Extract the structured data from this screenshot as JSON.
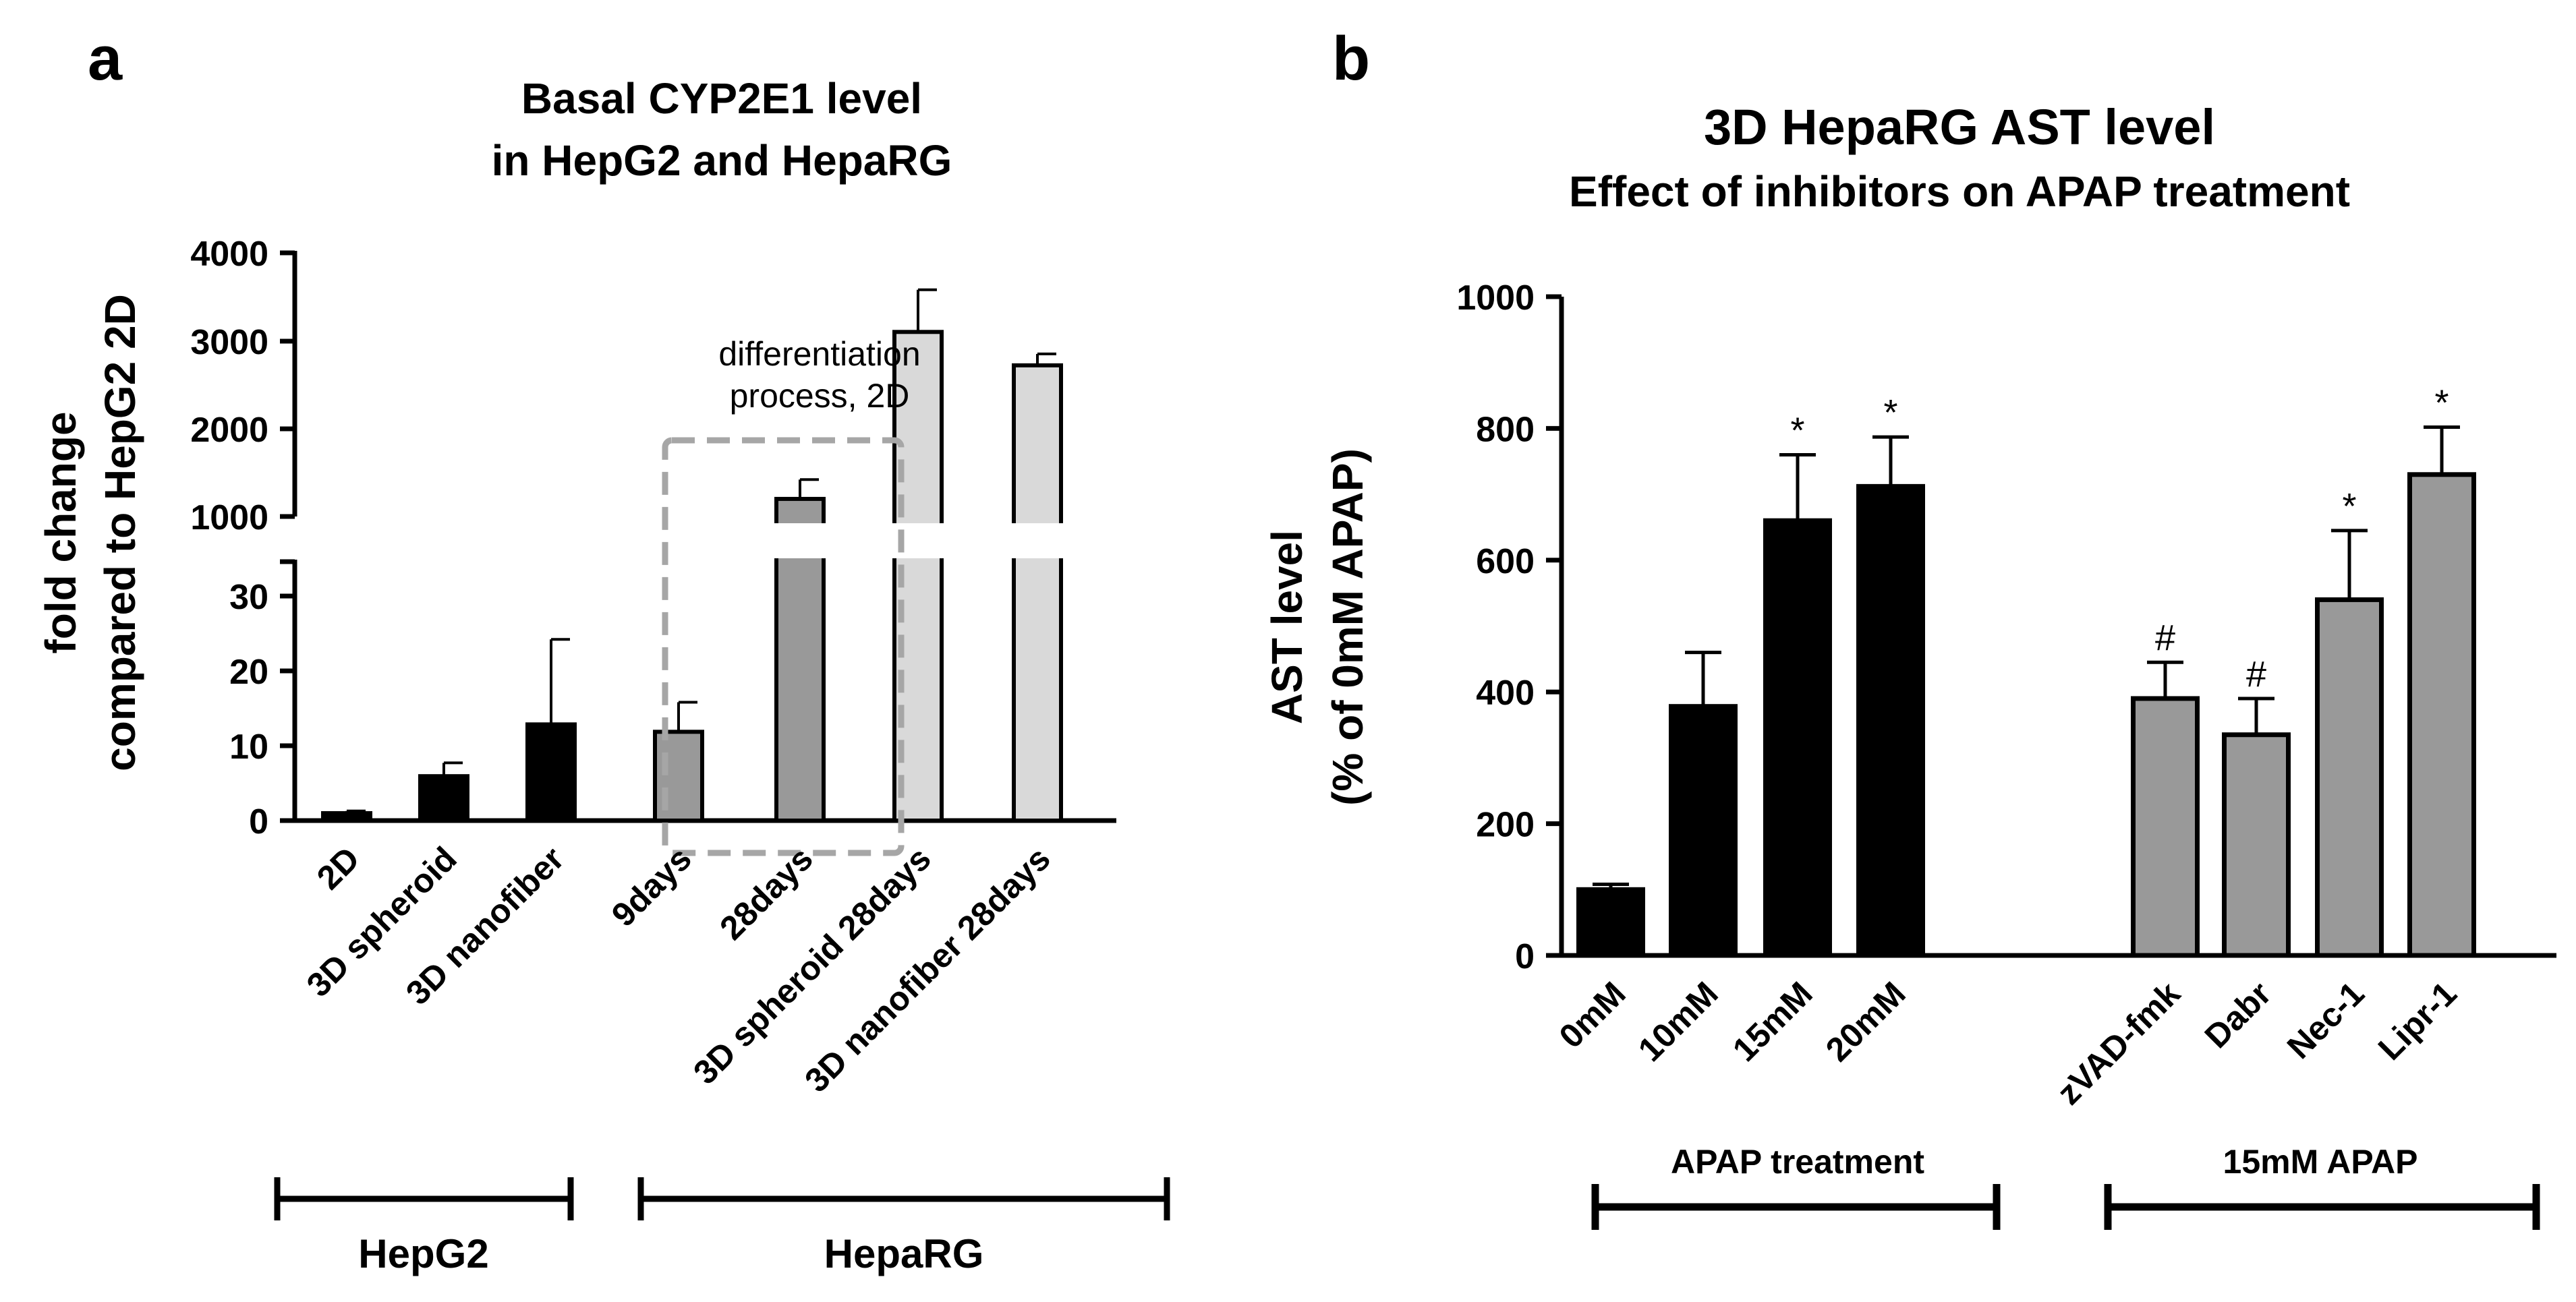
{
  "figure": {
    "panel_a": {
      "letter": "a"
    },
    "panel_b": {
      "letter": "b"
    }
  },
  "chart_data": [
    {
      "type": "bar",
      "title": "Basal CYP2E1 level\nin HepG2 and HepaRG",
      "title_lines": [
        "Basal CYP2E1 level",
        "in HepG2 and HepaRG"
      ],
      "ylabel_lines": [
        "fold change",
        "compared to HepG2 2D"
      ],
      "xlabel": "",
      "categories": [
        "2D",
        "3D spheroid",
        "3D nanofiber",
        "9days",
        "28days",
        "3D spheroid 28days",
        "3D nanofiber 28days"
      ],
      "values": [
        1,
        6,
        13,
        12,
        1200,
        3100,
        2720
      ],
      "errors": [
        0.3,
        1.8,
        11.5,
        4,
        220,
        480,
        130
      ],
      "bar_colors": [
        "#000000",
        "#000000",
        "#000000",
        "#999999",
        "#999999",
        "#d9d9d9",
        "#d9d9d9"
      ],
      "y_axis_broken": true,
      "lower_segment": {
        "ylim": [
          0,
          35
        ],
        "ticks": [
          "0",
          "10",
          "20",
          "30"
        ]
      },
      "upper_segment": {
        "ylim": [
          1000,
          4000
        ],
        "ticks": [
          "1000",
          "2000",
          "3000",
          "4000"
        ]
      },
      "annotation_lines": [
        "differentiation",
        "process, 2D"
      ],
      "groups": [
        {
          "label": "HepG2",
          "categories": [
            "2D",
            "3D spheroid",
            "3D nanofiber"
          ]
        },
        {
          "label": "HepaRG",
          "categories": [
            "9days",
            "28days",
            "3D spheroid 28days",
            "3D nanofiber 28days"
          ]
        }
      ]
    },
    {
      "type": "bar",
      "title_lines": [
        "3D HepaRG AST level",
        "Effect of inhibitors on APAP treatment"
      ],
      "ylabel_lines": [
        "AST level",
        "(% of 0mM APAP)"
      ],
      "xlabel": "",
      "categories": [
        "0mM",
        "10mM",
        "15mM",
        "20mM",
        "zVAD-fmk",
        "Dabr",
        "Nec-1",
        "Lipr-1"
      ],
      "values": [
        100,
        378,
        660,
        712,
        390,
        335,
        540,
        730
      ],
      "errors": [
        8,
        82,
        100,
        75,
        55,
        55,
        105,
        72
      ],
      "bar_colors": [
        "#000000",
        "#000000",
        "#000000",
        "#000000",
        "#999999",
        "#999999",
        "#999999",
        "#999999"
      ],
      "significance": [
        "",
        "",
        "*",
        "*",
        "#",
        "#",
        "*",
        "*"
      ],
      "ylim": [
        0,
        1000
      ],
      "yticks": [
        "0",
        "200",
        "400",
        "600",
        "800",
        "1000"
      ],
      "groups": [
        {
          "label": "APAP treatment",
          "categories": [
            "0mM",
            "10mM",
            "15mM",
            "20mM"
          ]
        },
        {
          "label": "15mM APAP",
          "categories": [
            "zVAD-fmk",
            "Dabr",
            "Nec-1",
            "Lipr-1"
          ]
        }
      ]
    }
  ]
}
